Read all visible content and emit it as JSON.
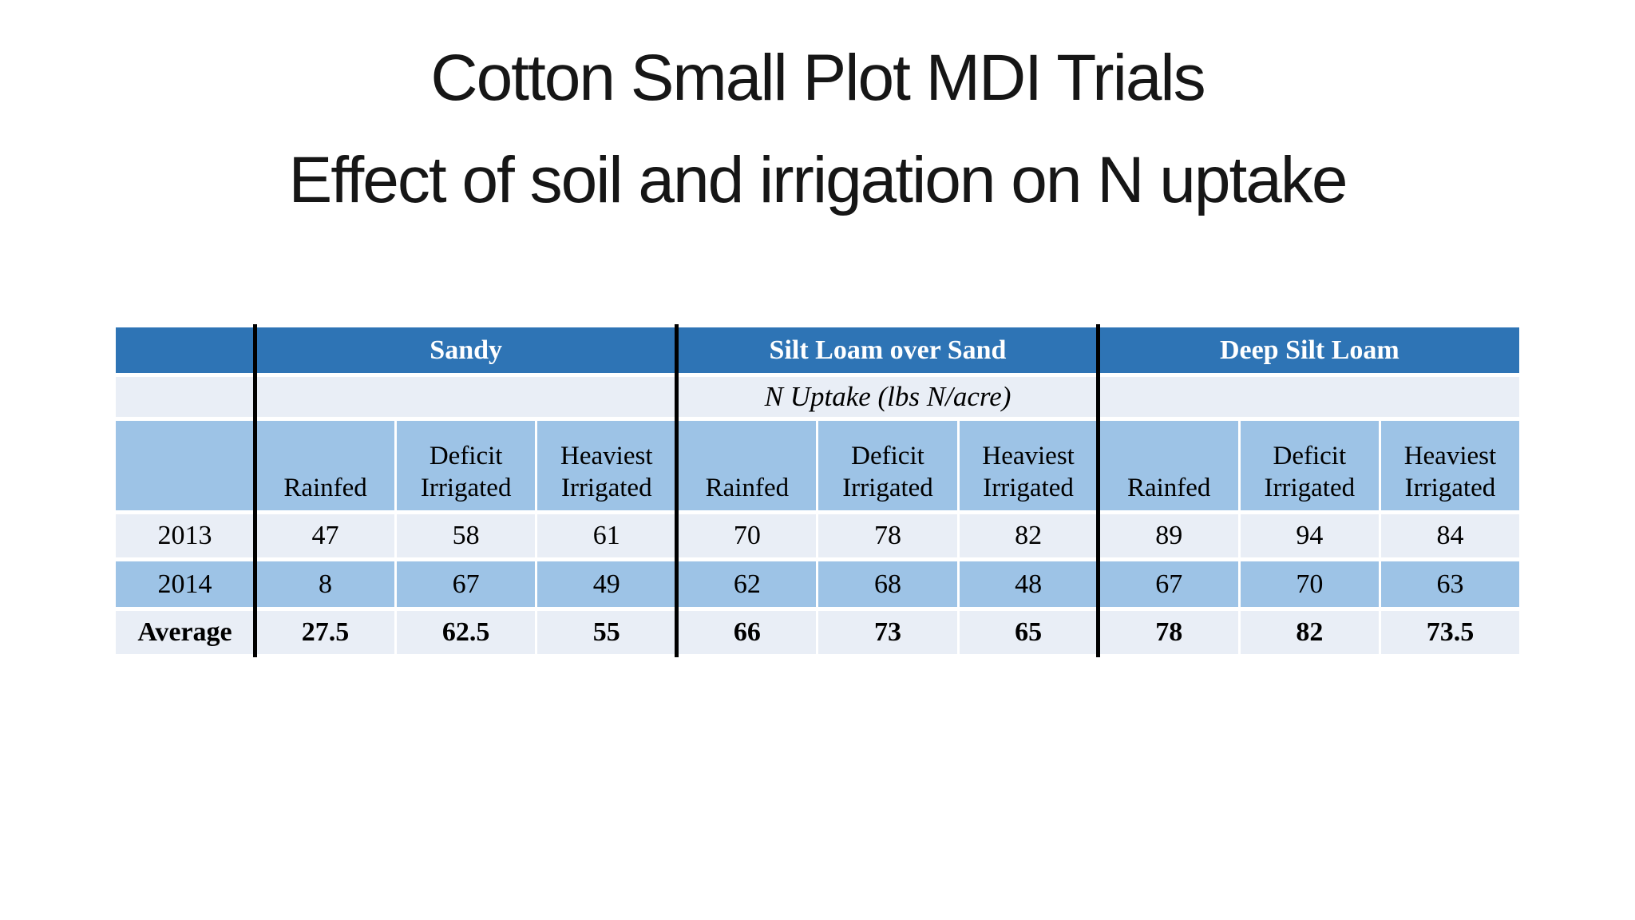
{
  "title": {
    "line1": "Cotton Small Plot MDI Trials",
    "line2": "Effect of soil and irrigation on N uptake"
  },
  "table": {
    "group_headers": [
      "Sandy",
      "Silt Loam over Sand",
      "Deep Silt Loam"
    ],
    "subtitle": "N Uptake (lbs N/acre)",
    "sub_headers": [
      "Rainfed",
      "Deficit Irrigated",
      "Heaviest Irrigated",
      "Rainfed",
      "Deficit Irrigated",
      "Heaviest Irrigated",
      "Rainfed",
      "Deficit Irrigated",
      "Heaviest Irrigated"
    ],
    "rows": [
      {
        "label": "2013",
        "values": [
          "47",
          "58",
          "61",
          "70",
          "78",
          "82",
          "89",
          "94",
          "84"
        ]
      },
      {
        "label": "2014",
        "values": [
          "8",
          "67",
          "49",
          "62",
          "68",
          "48",
          "67",
          "70",
          "63"
        ]
      },
      {
        "label": "Average",
        "values": [
          "27.5",
          "62.5",
          "55",
          "66",
          "73",
          "65",
          "78",
          "82",
          "73.5"
        ]
      }
    ]
  },
  "colors": {
    "header_blue": "#2E74B5",
    "band_blue": "#9DC3E6",
    "band_light": "#E9EEF6",
    "divider_black": "#000000",
    "gap_white": "#FFFFFF"
  },
  "chart_data": {
    "type": "table",
    "title": "Cotton Small Plot MDI Trials",
    "subtitle": "Effect of soil and irrigation on N uptake",
    "value_unit": "N Uptake (lbs N/acre)",
    "column_groups": [
      {
        "soil": "Sandy",
        "columns": [
          "Rainfed",
          "Deficit Irrigated",
          "Heaviest Irrigated"
        ]
      },
      {
        "soil": "Silt Loam over Sand",
        "columns": [
          "Rainfed",
          "Deficit Irrigated",
          "Heaviest Irrigated"
        ]
      },
      {
        "soil": "Deep Silt Loam",
        "columns": [
          "Rainfed",
          "Deficit Irrigated",
          "Heaviest Irrigated"
        ]
      }
    ],
    "rows": [
      {
        "label": "2013",
        "values": [
          47,
          58,
          61,
          70,
          78,
          82,
          89,
          94,
          84
        ]
      },
      {
        "label": "2014",
        "values": [
          8,
          67,
          49,
          62,
          68,
          48,
          67,
          70,
          63
        ]
      },
      {
        "label": "Average",
        "values": [
          27.5,
          62.5,
          55,
          66,
          73,
          65,
          78,
          82,
          73.5
        ]
      }
    ]
  }
}
